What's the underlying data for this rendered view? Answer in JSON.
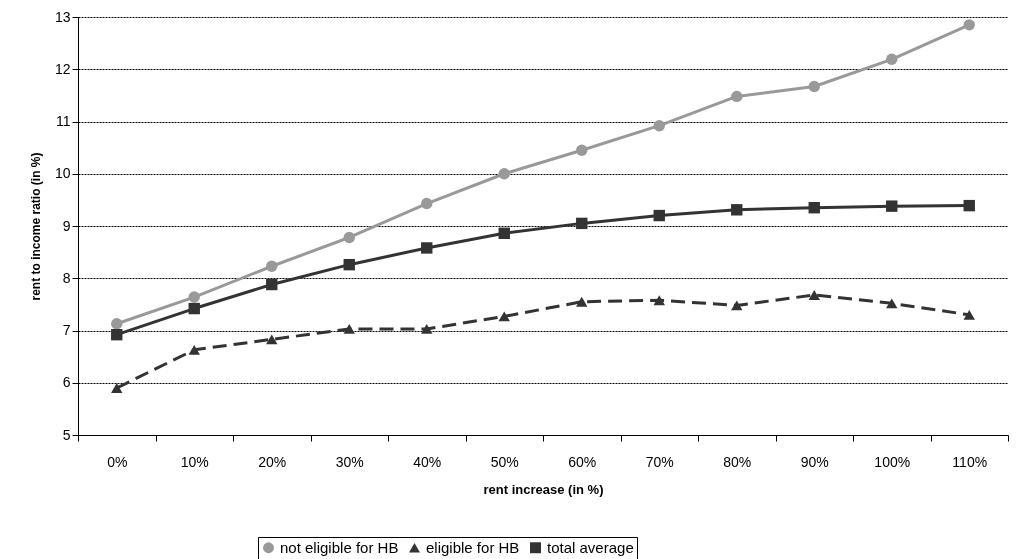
{
  "chart_data": {
    "type": "line",
    "xlabel": "rent increase (in %)",
    "ylabel": "rent to income ratio (in %)",
    "categories": [
      "0%",
      "10%",
      "20%",
      "30%",
      "40%",
      "50%",
      "60%",
      "70%",
      "80%",
      "90%",
      "100%",
      "110%"
    ],
    "series": [
      {
        "name": "not eligible for HB",
        "color": "#999999",
        "marker": "circle",
        "line_style": "solid",
        "values": [
          7.13,
          7.64,
          8.23,
          8.78,
          9.43,
          10.0,
          10.45,
          10.92,
          11.48,
          11.67,
          12.19,
          12.85
        ]
      },
      {
        "name": "eligible for HB",
        "color": "#333333",
        "marker": "triangle",
        "line_style": "dashed",
        "values": [
          5.9,
          6.63,
          6.83,
          7.03,
          7.03,
          7.27,
          7.55,
          7.58,
          7.48,
          7.68,
          7.52,
          7.3
        ]
      },
      {
        "name": "total average",
        "color": "#333333",
        "marker": "square",
        "line_style": "solid",
        "values": [
          6.92,
          7.42,
          7.88,
          8.26,
          8.58,
          8.86,
          9.05,
          9.2,
          9.31,
          9.35,
          9.38,
          9.39
        ]
      }
    ],
    "ylim": [
      5,
      13
    ],
    "yticks": [
      5,
      6,
      7,
      8,
      9,
      10,
      11,
      12,
      13
    ],
    "grid": "y",
    "legend": "bottom"
  }
}
